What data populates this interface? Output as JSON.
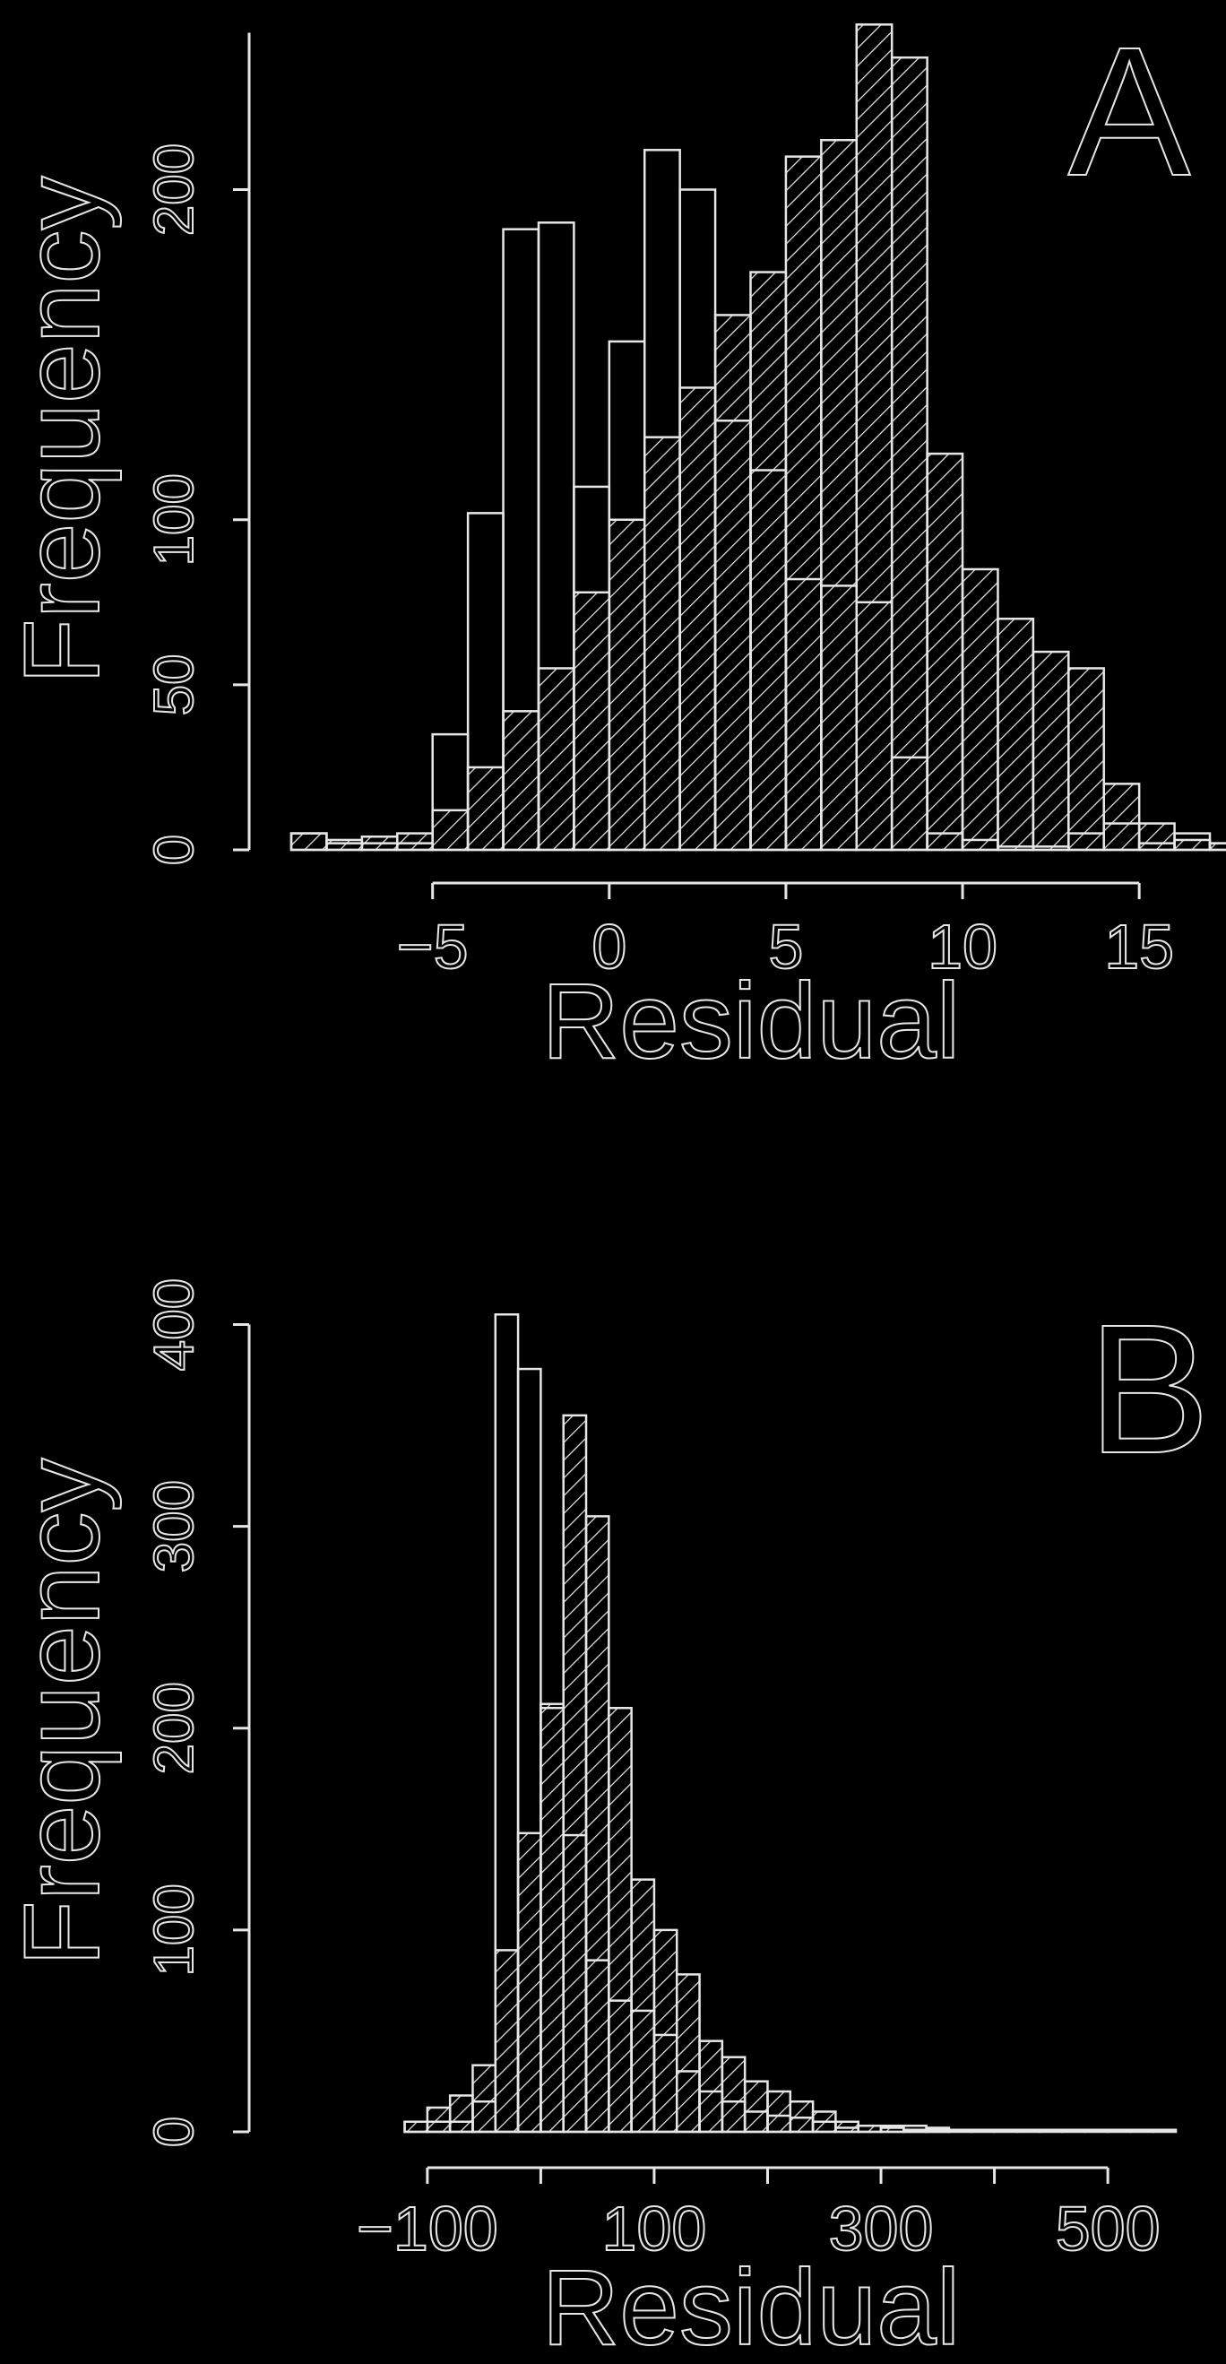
{
  "chart_data": [
    {
      "type": "histogram",
      "panel_label": "A",
      "title": "",
      "xlabel": "Residual",
      "ylabel": "Frequency",
      "xlim": [
        -9,
        17
      ],
      "ylim": [
        0,
        252
      ],
      "x_ticks": [
        -5,
        0,
        5,
        10,
        15
      ],
      "x_tick_labels": [
        "−5",
        "0",
        "5",
        "10",
        "15"
      ],
      "y_ticks": [
        0,
        50,
        100,
        200
      ],
      "y_tick_labels": [
        "0",
        "50",
        "100",
        "200"
      ],
      "grid": false,
      "bin_width": 1,
      "series": [
        {
          "fill": "none",
          "bins": [
            [
              -9,
              5
            ],
            [
              -8,
              2
            ],
            [
              -7,
              2
            ],
            [
              -6,
              2
            ],
            [
              -5,
              35
            ],
            [
              -4,
              102
            ],
            [
              -3,
              188
            ],
            [
              -2,
              190
            ],
            [
              -1,
              110
            ],
            [
              0,
              154
            ],
            [
              1,
              212
            ],
            [
              2,
              200
            ],
            [
              3,
              130
            ],
            [
              4,
              115
            ],
            [
              5,
              82
            ],
            [
              6,
              80
            ],
            [
              7,
              75
            ],
            [
              8,
              28
            ],
            [
              9,
              5
            ],
            [
              10,
              3
            ],
            [
              11,
              1
            ],
            [
              12,
              1
            ],
            [
              13,
              5
            ],
            [
              14,
              8
            ],
            [
              15,
              2
            ],
            [
              16,
              5
            ],
            [
              17,
              2
            ]
          ]
        },
        {
          "fill": "hatched",
          "bins": [
            [
              -9,
              5
            ],
            [
              -8,
              3
            ],
            [
              -7,
              4
            ],
            [
              -6,
              5
            ],
            [
              -5,
              12
            ],
            [
              -4,
              25
            ],
            [
              -3,
              42
            ],
            [
              -2,
              55
            ],
            [
              -1,
              78
            ],
            [
              0,
              100
            ],
            [
              1,
              125
            ],
            [
              2,
              140
            ],
            [
              3,
              162
            ],
            [
              4,
              175
            ],
            [
              5,
              210
            ],
            [
              6,
              215
            ],
            [
              7,
              250
            ],
            [
              8,
              240
            ],
            [
              9,
              120
            ],
            [
              10,
              85
            ],
            [
              11,
              70
            ],
            [
              12,
              60
            ],
            [
              13,
              55
            ],
            [
              14,
              20
            ],
            [
              15,
              8
            ],
            [
              16,
              3
            ],
            [
              17,
              2
            ]
          ]
        }
      ]
    },
    {
      "type": "histogram",
      "panel_label": "B",
      "title": "",
      "xlabel": "Residual",
      "ylabel": "Frequency",
      "xlim": [
        -220,
        590
      ],
      "ylim": [
        0,
        410
      ],
      "x_ticks": [
        -100,
        0,
        100,
        200,
        300,
        400,
        500
      ],
      "x_tick_labels": [
        "−100",
        "",
        "100",
        "",
        "300",
        "",
        "500"
      ],
      "y_ticks": [
        0,
        100,
        200,
        300,
        400
      ],
      "y_tick_labels": [
        "0",
        "100",
        "200",
        "300",
        "400"
      ],
      "grid": false,
      "bin_width": 20,
      "series": [
        {
          "fill": "none",
          "bins": [
            [
              -120,
              5
            ],
            [
              -100,
              5
            ],
            [
              -80,
              5
            ],
            [
              -60,
              15
            ],
            [
              -40,
              405
            ],
            [
              -20,
              378
            ],
            [
              0,
              210
            ],
            [
              20,
              147
            ],
            [
              40,
              85
            ],
            [
              60,
              65
            ],
            [
              80,
              60
            ],
            [
              100,
              48
            ],
            [
              120,
              30
            ],
            [
              140,
              20
            ],
            [
              160,
              15
            ],
            [
              180,
              10
            ],
            [
              200,
              8
            ],
            [
              220,
              7
            ],
            [
              240,
              5
            ],
            [
              260,
              2
            ],
            [
              280,
              3
            ],
            [
              300,
              3
            ],
            [
              320,
              3
            ],
            [
              340,
              2
            ],
            [
              360,
              1
            ],
            [
              380,
              1
            ],
            [
              400,
              1
            ],
            [
              420,
              1
            ],
            [
              440,
              1
            ],
            [
              460,
              1
            ],
            [
              480,
              1
            ],
            [
              500,
              1
            ],
            [
              520,
              1
            ],
            [
              540,
              1
            ]
          ]
        },
        {
          "fill": "hatched",
          "bins": [
            [
              -120,
              5
            ],
            [
              -100,
              12
            ],
            [
              -80,
              18
            ],
            [
              -60,
              33
            ],
            [
              -40,
              90
            ],
            [
              -20,
              148
            ],
            [
              0,
              212
            ],
            [
              20,
              355
            ],
            [
              40,
              305
            ],
            [
              60,
              210
            ],
            [
              80,
              125
            ],
            [
              100,
              100
            ],
            [
              120,
              78
            ],
            [
              140,
              45
            ],
            [
              160,
              37
            ],
            [
              180,
              25
            ],
            [
              200,
              20
            ],
            [
              220,
              15
            ],
            [
              240,
              10
            ],
            [
              260,
              5
            ],
            [
              280,
              3
            ],
            [
              300,
              2
            ],
            [
              320,
              1
            ],
            [
              340,
              1
            ]
          ]
        }
      ]
    }
  ]
}
